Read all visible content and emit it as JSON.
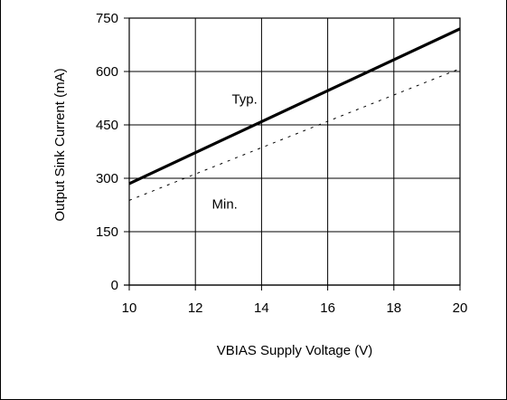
{
  "chart_data": {
    "type": "line",
    "xlabel": "VBIAS Supply Voltage (V)",
    "ylabel": "Output Sink Current (mA)",
    "xlim": [
      10,
      20
    ],
    "ylim": [
      0,
      750
    ],
    "x_ticks": [
      "10",
      "12",
      "14",
      "16",
      "18",
      "20"
    ],
    "y_ticks": [
      "0",
      "150",
      "300",
      "450",
      "600",
      "750"
    ],
    "grid": true,
    "series": [
      {
        "name": "Typ.",
        "style": "solid",
        "x": [
          10,
          20
        ],
        "y": [
          285,
          720
        ]
      },
      {
        "name": "Min.",
        "style": "dashed",
        "x": [
          10,
          20
        ],
        "y": [
          238,
          608
        ]
      }
    ]
  }
}
